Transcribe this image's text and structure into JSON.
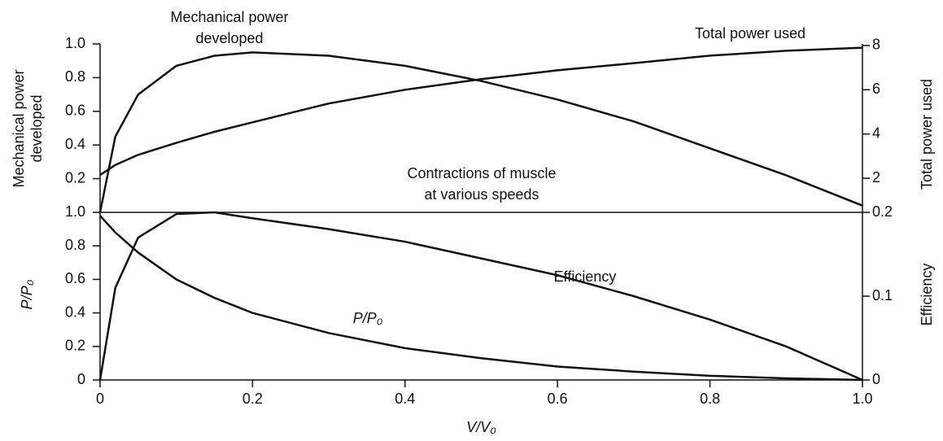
{
  "chart_data": [
    {
      "type": "line",
      "title": [
        "Contractions of muscle",
        "at various speeds"
      ],
      "ylabel": [
        "Mechanical power",
        "developed"
      ],
      "y2label": "Total power used",
      "x": [
        0,
        0.02,
        0.05,
        0.1,
        0.15,
        0.2,
        0.3,
        0.4,
        0.5,
        0.6,
        0.7,
        0.8,
        0.9,
        1.0
      ],
      "xlim": [
        0,
        1
      ],
      "ylim": [
        0,
        1
      ],
      "yticks": [
        0.2,
        0.4,
        0.6,
        0.8,
        {
          "value": 1,
          "label": "1.0"
        }
      ],
      "y2lim": [
        0.46,
        8.07
      ],
      "y2ticks": [
        2,
        4,
        6,
        8
      ],
      "series": [
        {
          "color": "#111111",
          "values": [
            0,
            0.45,
            0.7,
            0.87,
            0.93,
            0.95,
            0.93,
            0.87,
            0.78,
            0.67,
            0.54,
            0.38,
            0.22,
            0.04
          ]
        },
        {
          "color": "#111111",
          "axis": "y2",
          "values": [
            2.15,
            2.6,
            3.06,
            3.6,
            4.1,
            4.53,
            5.38,
            6.0,
            6.48,
            6.88,
            7.2,
            7.54,
            7.76,
            7.9
          ]
        }
      ],
      "annotations": [
        [
          "Mechanical power",
          "developed"
        ],
        [
          "Total power used"
        ]
      ]
    },
    {
      "type": "line",
      "ylabel": [
        "P/P₀"
      ],
      "y2label": "Efficiency",
      "xlabel": "V/V₀",
      "x": [
        0,
        0.02,
        0.05,
        0.1,
        0.15,
        0.2,
        0.3,
        0.4,
        0.5,
        0.6,
        0.7,
        0.8,
        0.9,
        1.0
      ],
      "xlim": [
        0,
        1
      ],
      "xticks": [
        0,
        0.2,
        0.4,
        0.6,
        0.8,
        {
          "value": 1,
          "label": "1.0"
        }
      ],
      "ylim": [
        0,
        1
      ],
      "yticks": [
        0,
        0.2,
        0.4,
        0.6,
        0.8,
        {
          "value": 1,
          "label": "1.0"
        }
      ],
      "y2lim": [
        0,
        0.2
      ],
      "y2ticks": [
        0,
        0.1,
        0.2
      ],
      "series": [
        {
          "color": "#111111",
          "values": [
            0.98,
            0.88,
            0.76,
            0.6,
            0.49,
            0.4,
            0.28,
            0.19,
            0.13,
            0.08,
            0.05,
            0.025,
            0.01,
            0
          ]
        },
        {
          "color": "#111111",
          "axis": "y2",
          "values": [
            0,
            0.11,
            0.17,
            0.198,
            0.2,
            0.193,
            0.18,
            0.165,
            0.145,
            0.125,
            0.1,
            0.072,
            0.04,
            0
          ]
        }
      ],
      "annotations": [
        [
          "Efficiency"
        ],
        [
          "P/P₀"
        ]
      ]
    }
  ]
}
